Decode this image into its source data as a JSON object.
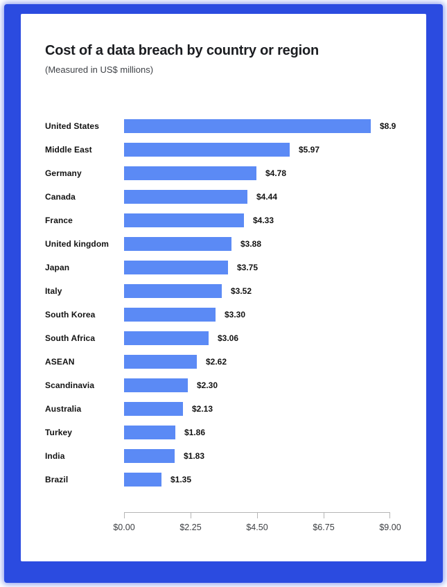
{
  "frame": {
    "border_color": "#2b4be0",
    "card_background": "#ffffff"
  },
  "header": {
    "title": "Cost of a data breach by country or region",
    "subtitle": "(Measured in US$ millions)"
  },
  "chart_data": {
    "type": "bar",
    "orientation": "horizontal",
    "title": "Cost of a data breach by country or region",
    "subtitle": "(Measured in US$ millions)",
    "xlabel": "",
    "ylabel": "",
    "xlim": [
      0,
      9
    ],
    "grid": false,
    "legend": false,
    "bar_color": "#5b8af5",
    "categories": [
      "United States",
      "Middle East",
      "Germany",
      "Canada",
      "France",
      "United kingdom",
      "Japan",
      "Italy",
      "South Korea",
      "South Africa",
      "ASEAN",
      "Scandinavia",
      "Australia",
      "Turkey",
      "India",
      "Brazil"
    ],
    "values": [
      8.9,
      5.97,
      4.78,
      4.44,
      4.33,
      3.88,
      3.75,
      3.52,
      3.3,
      3.06,
      2.62,
      2.3,
      2.13,
      1.86,
      1.83,
      1.35
    ],
    "value_labels": [
      "$8.9",
      "$5.97",
      "$4.78",
      "$4.44",
      "$4.33",
      "$3.88",
      "$3.75",
      "$3.52",
      "$3.30",
      "$3.06",
      "$2.62",
      "$2.30",
      "$2.13",
      "$1.86",
      "$1.83",
      "$1.35"
    ],
    "x_ticks": [
      "$0.00",
      "$2.25",
      "$4.50",
      "$6.75",
      "$9.00"
    ]
  }
}
